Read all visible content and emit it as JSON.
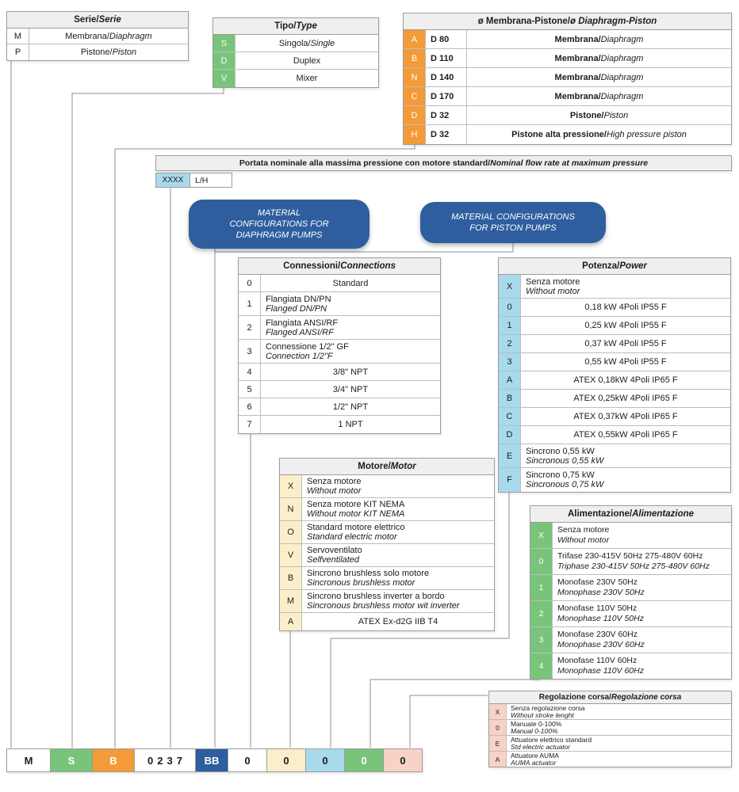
{
  "colors": {
    "green": "#79C47B",
    "orange": "#F29B38",
    "light_blue": "#A9D9ED",
    "cream": "#FBEFCB",
    "pink": "#F8D3C5",
    "dark_blue": "#2E5E9E",
    "header_gray": "#EFEFEF"
  },
  "tables": {
    "serie": {
      "title_main": "Serie/",
      "title_sub": "Serie",
      "code_bg": "#FFFFFF",
      "code_fg": "#1C1C1C",
      "rows": [
        {
          "code": "M",
          "layout": "inline",
          "main": "Membrana/ ",
          "sub": "Diaphragm"
        },
        {
          "code": "P",
          "layout": "inline",
          "main": "Pistone/ ",
          "sub": "Piston"
        }
      ]
    },
    "tipo": {
      "title_main": "Tipo/",
      "title_sub": "Type",
      "code_bg": "#79C47B",
      "code_fg": "#FFFFFF",
      "rows": [
        {
          "code": "S",
          "layout": "inline",
          "main": "Singola/",
          "sub": "Single"
        },
        {
          "code": "D",
          "layout": "inline",
          "main": "Duplex",
          "sub": ""
        },
        {
          "code": "V",
          "layout": "inline",
          "main": "Mixer",
          "sub": ""
        }
      ]
    },
    "membrana": {
      "title_main": "ø Membrana-Pistone/",
      "title_sub": "ø Diaphragm-Piston",
      "code_bg": "#F29B38",
      "code_fg": "#FFFFFF",
      "rows": [
        {
          "code": "A",
          "size": "D 80",
          "layout": "inline",
          "main": "Membrana/",
          "sub": "Diaphragm"
        },
        {
          "code": "B",
          "size": "D 110",
          "layout": "inline",
          "main": "Membrana/",
          "sub": "Diaphragm"
        },
        {
          "code": "N",
          "size": "D 140",
          "layout": "inline",
          "main": "Membrana/",
          "sub": "Diaphragm"
        },
        {
          "code": "C",
          "size": "D 170",
          "layout": "inline",
          "main": "Membrana/",
          "sub": "Diaphragm"
        },
        {
          "code": "D",
          "size": "D 32",
          "layout": "inline",
          "main": "Pistone/",
          "sub": "Piston"
        },
        {
          "code": "H",
          "size": "D 32",
          "layout": "inline",
          "main": "Pistone alta pressione/",
          "sub": "High pressure piston"
        }
      ]
    },
    "connessioni": {
      "title_main": "Connessioni/",
      "title_sub": "Connections",
      "code_bg": "#FFFFFF",
      "code_fg": "#1C1C1C",
      "rows": [
        {
          "code": "0",
          "layout": "single",
          "main": "Standard",
          "sub": ""
        },
        {
          "code": "1",
          "layout": "stack",
          "main": "Flangiata DN/PN",
          "sub": "Flanged DN/PN"
        },
        {
          "code": "2",
          "layout": "stack",
          "main": "Flangiata ANSI/RF",
          "sub": "Flanged ANSI/RF"
        },
        {
          "code": "3",
          "layout": "stack",
          "main": "Connessione 1/2\" GF",
          "sub": "Connection 1/2\"F"
        },
        {
          "code": "4",
          "layout": "single",
          "main": "3/8\" NPT",
          "sub": ""
        },
        {
          "code": "5",
          "layout": "single",
          "main": "3/4\" NPT",
          "sub": ""
        },
        {
          "code": "6",
          "layout": "single",
          "main": "1/2\" NPT",
          "sub": ""
        },
        {
          "code": "7",
          "layout": "single",
          "main": "1 NPT",
          "sub": ""
        }
      ]
    },
    "potenza": {
      "title_main": "Potenza/",
      "title_sub": "Power",
      "code_bg": "#A9D9ED",
      "code_fg": "#1C1C1C",
      "rows": [
        {
          "code": "X",
          "layout": "stack",
          "main": "Senza motore",
          "sub": "Without motor"
        },
        {
          "code": "0",
          "layout": "single",
          "main": "0,18 kW 4Poli IP55 F",
          "sub": ""
        },
        {
          "code": "1",
          "layout": "single",
          "main": "0,25 kW 4Poli IP55 F",
          "sub": ""
        },
        {
          "code": "2",
          "layout": "single",
          "main": "0,37 kW 4Poli IP55 F",
          "sub": ""
        },
        {
          "code": "3",
          "layout": "single",
          "main": "0,55 kW 4Poli IP55 F",
          "sub": ""
        },
        {
          "code": "A",
          "layout": "single",
          "main": "ATEX 0,18kW 4Poli IP65 F",
          "sub": ""
        },
        {
          "code": "B",
          "layout": "single",
          "main": "ATEX 0,25kW 4Poli IP65 F",
          "sub": ""
        },
        {
          "code": "C",
          "layout": "single",
          "main": "ATEX 0,37kW 4Poli IP65 F",
          "sub": ""
        },
        {
          "code": "D",
          "layout": "single",
          "main": "ATEX 0,55kW 4Poli IP65 F",
          "sub": ""
        },
        {
          "code": "E",
          "layout": "stack",
          "main": "Sincrono 0,55 kW",
          "sub": "Sincronous 0,55 kW"
        },
        {
          "code": "F",
          "layout": "stack",
          "main": "Sincrono 0,75 kW",
          "sub": "Sincronous 0,75 kW"
        }
      ]
    },
    "motore": {
      "title_main": "Motore/",
      "title_sub": "Motor",
      "code_bg": "#FBEFCB",
      "code_fg": "#1C1C1C",
      "rows": [
        {
          "code": "X",
          "layout": "stack",
          "main": "Senza motore",
          "sub": "Without motor"
        },
        {
          "code": "N",
          "layout": "stack",
          "main": "Senza motore KIT NEMA",
          "sub": "Without motor KIT NEMA"
        },
        {
          "code": "O",
          "layout": "stack",
          "main": "Standard motore elettrico",
          "sub": "Standard electric motor"
        },
        {
          "code": "V",
          "layout": "stack",
          "main": "Servoventilato",
          "sub": "Selfventilated"
        },
        {
          "code": "B",
          "layout": "stack",
          "main": "Sincrono brushless solo motore",
          "sub": "Sincronous brushless motor"
        },
        {
          "code": "M",
          "layout": "stack",
          "main": "Sincrono brushless inverter a bordo",
          "sub": "Sincronous brushless motor wit inverter"
        },
        {
          "code": "A",
          "layout": "single",
          "main": "ATEX Ex-d2G IIB T4",
          "sub": ""
        }
      ]
    },
    "alimentazione": {
      "title_main": "Alimentazione/",
      "title_sub": "Alimentazione",
      "code_bg": "#79C47B",
      "code_fg": "#FFFFFF",
      "rows": [
        {
          "code": "X",
          "layout": "stack",
          "main": "Senza motore",
          "sub": "Without motor"
        },
        {
          "code": "0",
          "layout": "stack",
          "main": "Trifase 230-415V 50Hz 275-480V 60Hz",
          "sub": "Triphase 230-415V 50Hz 275-480V 60Hz"
        },
        {
          "code": "1",
          "layout": "stack",
          "main": "Monofase 230V 50Hz",
          "sub": "Monophase 230V 50Hz"
        },
        {
          "code": "2",
          "layout": "stack",
          "main": "Monofase 110V 50Hz",
          "sub": "Monophase 110V 50Hz"
        },
        {
          "code": "3",
          "layout": "stack",
          "main": "Monofase 230V 60Hz",
          "sub": "Monophase 230V 60Hz"
        },
        {
          "code": "4",
          "layout": "stack",
          "main": "Monofase 110V 60Hz",
          "sub": "Monophase 110V 60Hz"
        }
      ]
    },
    "regolazione": {
      "title_main": "Regolazione corsa/",
      "title_sub": "Regolazione corsa",
      "code_bg": "#F8D3C5",
      "code_fg": "#1C1C1C",
      "rows": [
        {
          "code": "X",
          "layout": "stack",
          "main": "Senza regolazione corsa",
          "sub": "Without stroke lenght"
        },
        {
          "code": "0",
          "layout": "stack",
          "main": "Manuale 0-100%",
          "sub": "Manual 0-100%"
        },
        {
          "code": "E",
          "layout": "stack",
          "main": "Attuatore elettrico standard",
          "sub": "Std electric actuator"
        },
        {
          "code": "A",
          "layout": "stack",
          "main": "Attuatore AUMA",
          "sub": "AUMA actuator"
        }
      ]
    }
  },
  "portata": {
    "title_main": "Portata nominale alla massima pressione con motore standard/ ",
    "title_sub": "Nominal flow rate at maximum pressure",
    "code": "XXXX",
    "unit": "L/H",
    "code_bg": "#A9D9ED"
  },
  "badges": {
    "diaphragm": {
      "lines": [
        "MATERIAL",
        "CONFIGURATIONS FOR",
        "DIAPHRAGM PUMPS"
      ]
    },
    "piston": {
      "lines": [
        "MATERIAL CONFIGURATIONS",
        "FOR PISTON PUMPS"
      ]
    }
  },
  "code_row": [
    {
      "value": "M",
      "bg": "#FFFFFF",
      "fg": "#1C1C1C"
    },
    {
      "value": "S",
      "bg": "#79C47B",
      "fg": "#FFFFFF"
    },
    {
      "value": "B",
      "bg": "#F29B38",
      "fg": "#FFFFFF"
    },
    {
      "value": "0237",
      "bg": "#FFFFFF",
      "fg": "#1C1C1C"
    },
    {
      "value": "BB",
      "bg": "#2E5E9E",
      "fg": "#FFFFFF"
    },
    {
      "value": "0",
      "bg": "#FFFFFF",
      "fg": "#1C1C1C"
    },
    {
      "value": "0",
      "bg": "#FBEFCB",
      "fg": "#1C1C1C"
    },
    {
      "value": "0",
      "bg": "#A9D9ED",
      "fg": "#1C1C1C"
    },
    {
      "value": "0",
      "bg": "#79C47B",
      "fg": "#FFFFFF"
    },
    {
      "value": "0",
      "bg": "#F8D3C5",
      "fg": "#1C1C1C"
    }
  ]
}
